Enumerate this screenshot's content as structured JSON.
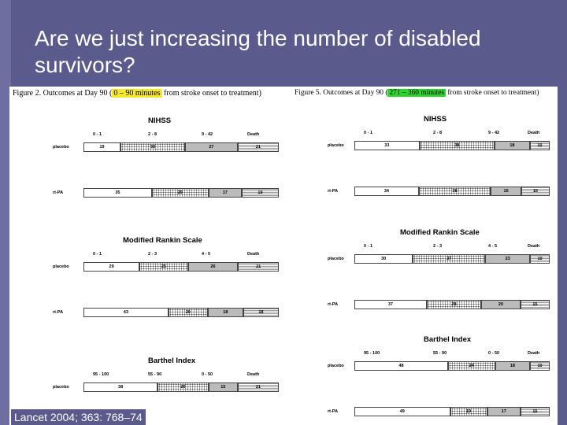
{
  "slide": {
    "title": "Are we just increasing the number of disabled survivors?",
    "citation": "Lancet 2004; 363: 768–74"
  },
  "left": {
    "caption_pre": "Figure 2.  Outcomes at Day 90  (",
    "caption_hl": "0 – 90 minutes",
    "caption_post": " from stroke onset to treatment)",
    "sections": [
      {
        "name": "NIHSS",
        "cats": [
          "0 - 1",
          "2 - 8",
          "9 - 42",
          "Death"
        ],
        "rows": [
          {
            "label": "placebo",
            "values": [
              19,
              33,
              27,
              21
            ]
          },
          {
            "label": "rt-PA",
            "values": [
              35,
              29,
              17,
              19
            ]
          }
        ]
      },
      {
        "name": "Modified Rankin Scale",
        "cats": [
          "0 - 1",
          "2 - 3",
          "4 - 5",
          "Death"
        ],
        "rows": [
          {
            "label": "placebo",
            "values": [
              29,
              25,
              26,
              21
            ]
          },
          {
            "label": "rt-PA",
            "values": [
              43,
              20,
              18,
              18
            ]
          }
        ]
      },
      {
        "name": "Barthel Index",
        "cats": [
          "95 - 100",
          "55 - 90",
          "0 - 50",
          "Death"
        ],
        "rows": [
          {
            "label": "placebo",
            "values": [
              38,
              26,
              15,
              21
            ]
          }
        ]
      }
    ]
  },
  "right": {
    "caption_pre": "Figure 5.  Outcomes at Day 90  (",
    "caption_hl": "271 – 360 minutes",
    "caption_post": " from stroke onset to treatment)",
    "sections": [
      {
        "name": "NIHSS",
        "cats": [
          "0 - 1",
          "2 - 8",
          "9 - 42",
          "Death"
        ],
        "rows": [
          {
            "label": "placebo",
            "values": [
              33,
              38,
              18,
              10
            ]
          },
          {
            "label": "rt-PA",
            "values": [
              34,
              38,
              16,
              15
            ]
          }
        ]
      },
      {
        "name": "Modified Rankin Scale",
        "cats": [
          "0 - 1",
          "2 - 3",
          "4 - 5",
          "Death"
        ],
        "rows": [
          {
            "label": "placebo",
            "values": [
              30,
              37,
              23,
              10
            ]
          },
          {
            "label": "rt-PA",
            "values": [
              37,
              28,
              20,
              15
            ]
          }
        ]
      },
      {
        "name": "Barthel Index",
        "cats": [
          "95 - 100",
          "55 - 90",
          "0 - 50",
          "Death"
        ],
        "rows": [
          {
            "label": "placebo",
            "values": [
              48,
              24,
              18,
              10
            ]
          },
          {
            "label": "rt-PA",
            "values": [
              49,
              19,
              17,
              15
            ]
          }
        ]
      }
    ]
  },
  "colors": {
    "background": "#5a5a8c",
    "highlight_left": "#f4e82a",
    "highlight_right": "#2ed32e"
  }
}
